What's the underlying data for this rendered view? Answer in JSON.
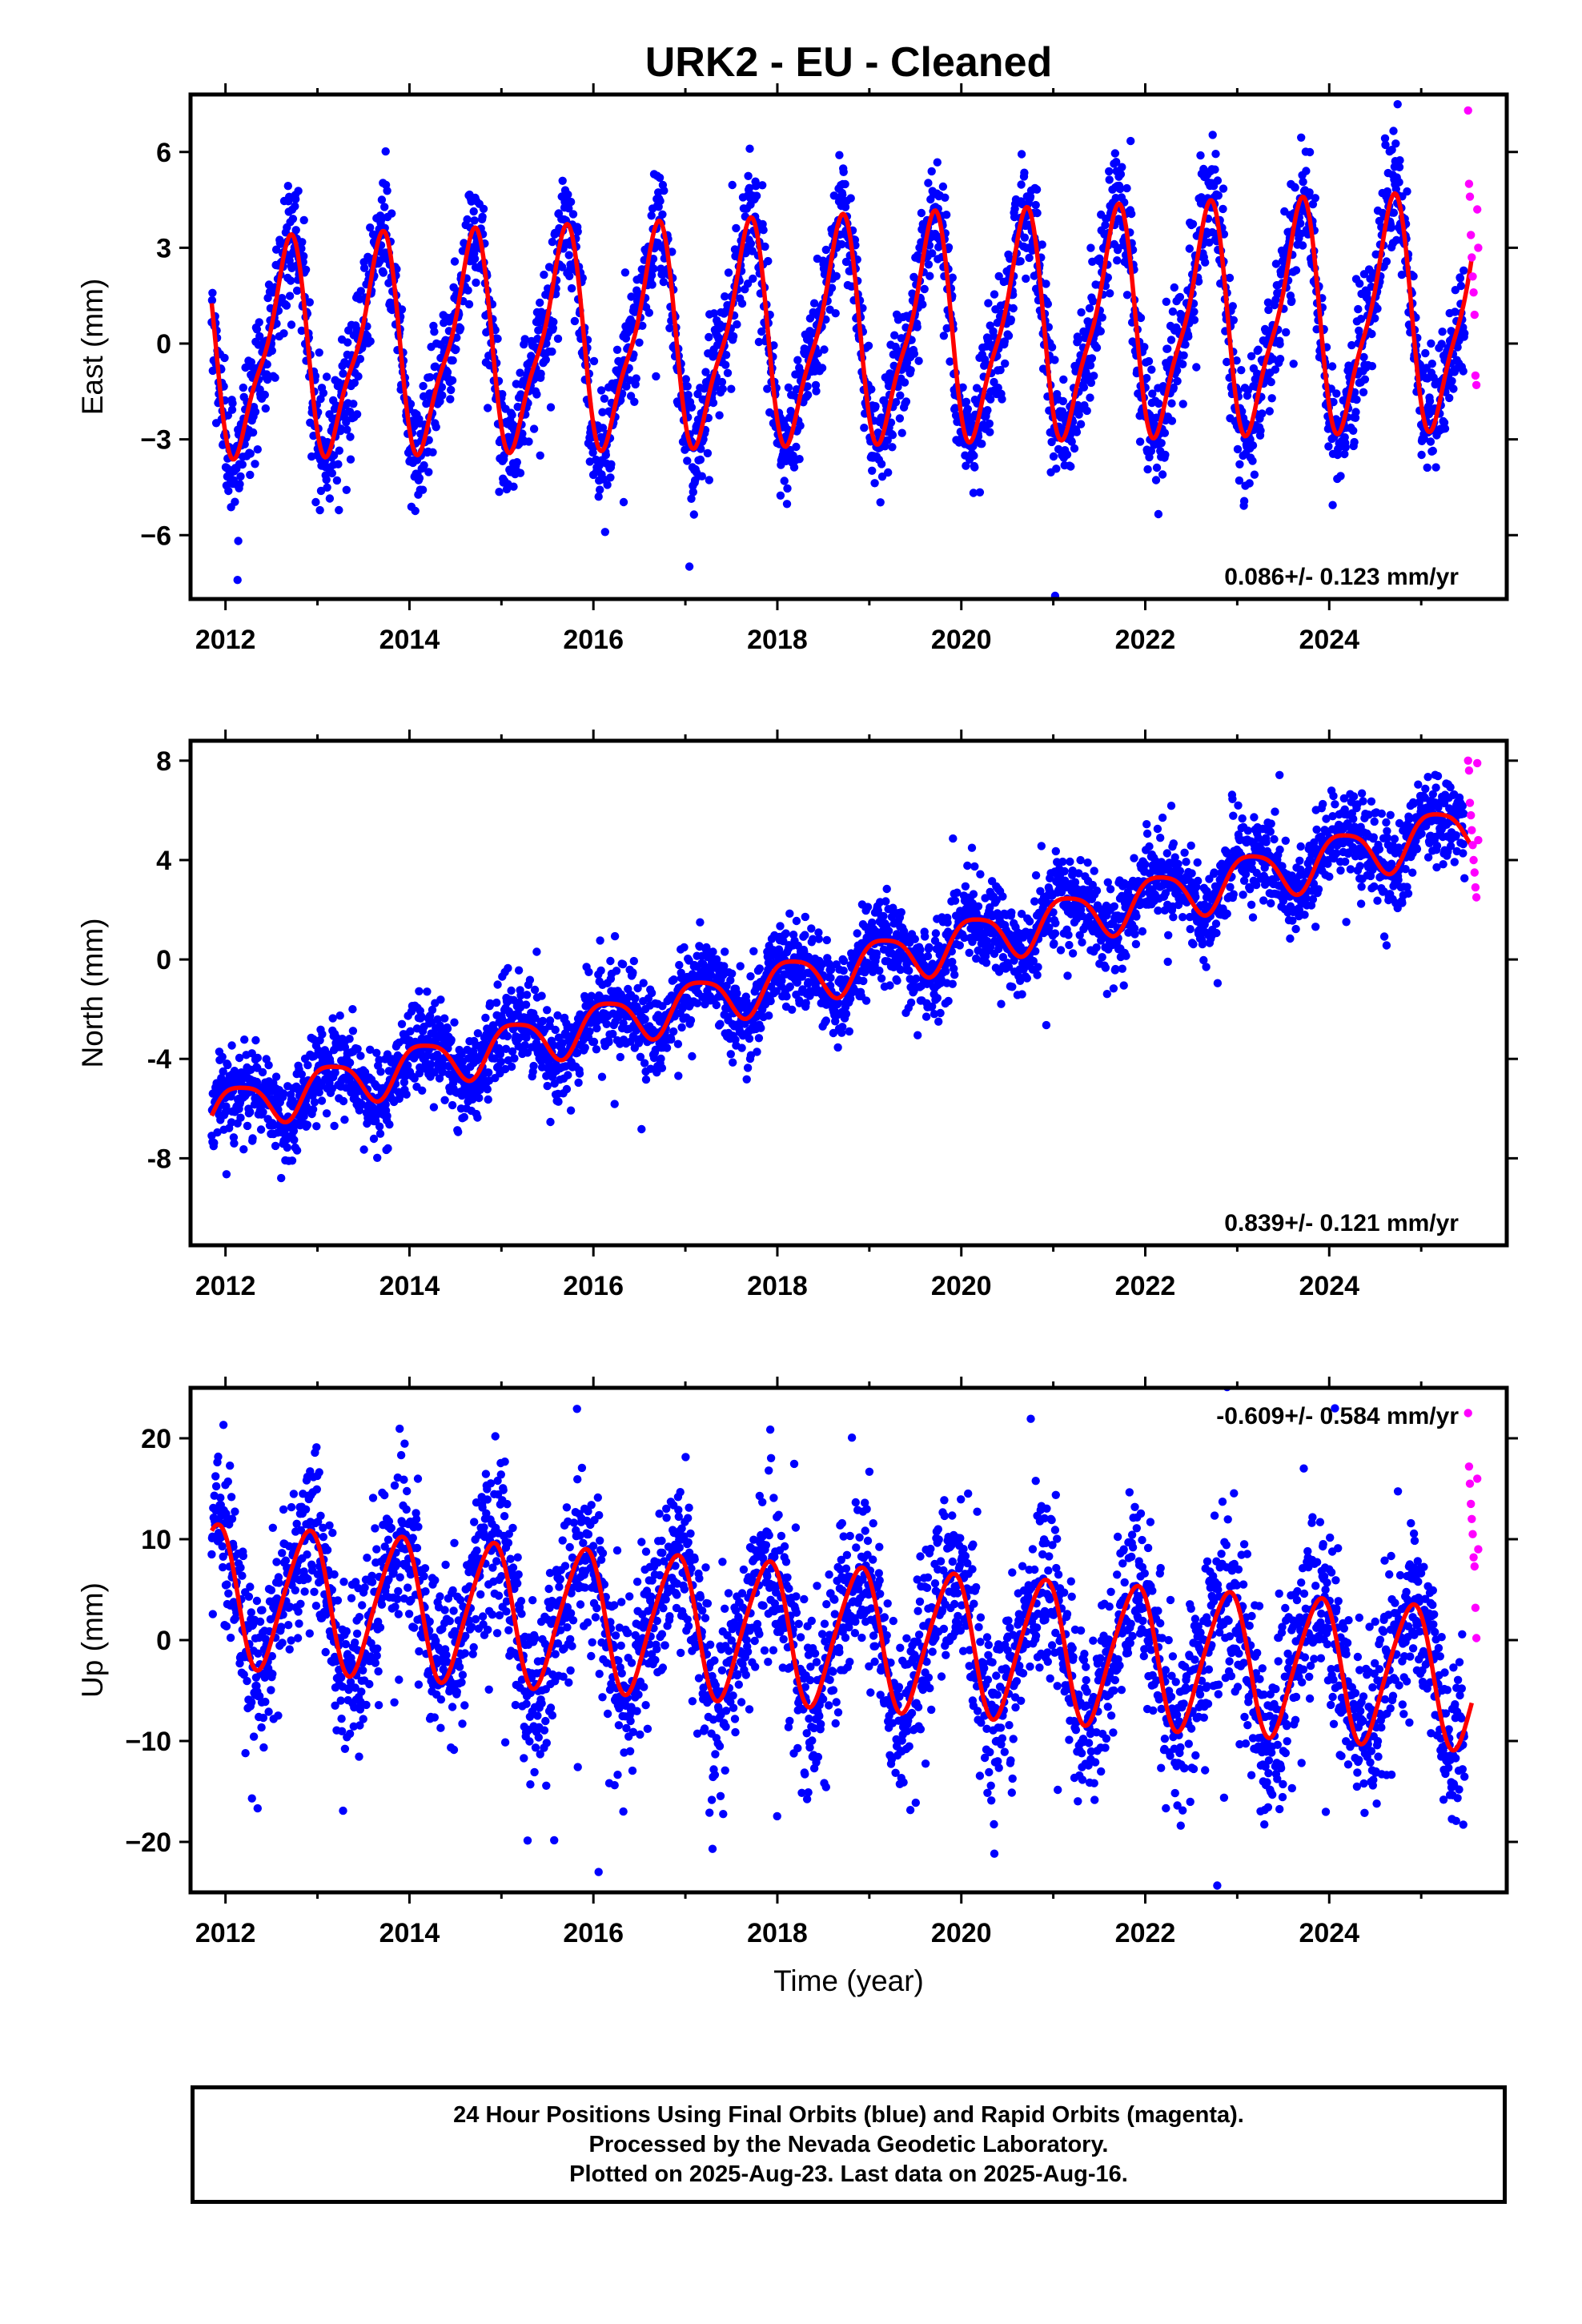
{
  "title": "URK2  - EU - Cleaned",
  "colors": {
    "final": "#0000ff",
    "rapid": "#ff00ff",
    "model": "#ff0000",
    "frame": "#000000"
  },
  "footer": {
    "line1": "24 Hour Positions Using Final Orbits (blue) and Rapid Orbits (magenta).",
    "line2": "Processed by the Nevada Geodetic Laboratory.",
    "line3": "Plotted on 2025-Aug-23. Last data on 2025-Aug-16."
  },
  "chart_data": [
    {
      "type": "scatter",
      "component": "east",
      "ylabel": "East (mm)",
      "xlabel": "",
      "xlim": [
        2011.62,
        2025.93
      ],
      "ylim": [
        -8.0,
        7.8
      ],
      "xticks": [
        2012,
        2014,
        2016,
        2018,
        2020,
        2022,
        2024
      ],
      "yticks": [
        -6,
        -3,
        0,
        3,
        6
      ],
      "ytick_labels": [
        "−6",
        "−3",
        "0",
        "3",
        "6"
      ],
      "rate_label": "0.086+/- 0.123 mm/yr",
      "rate_position": "bottom-right",
      "series": [
        {
          "name": "Final Orbits (blue)",
          "role": "final",
          "x_range": [
            2011.85,
            2025.47
          ],
          "trend": -0.3,
          "rate": 0.086,
          "annual_amp": 3.1,
          "annual_amp_change": 0.3,
          "phase": 0.41,
          "semiannual_amp": 0.9,
          "semiannual_phase": 0.14,
          "noise": 0.9,
          "count": 3300
        },
        {
          "name": "Rapid Orbits (magenta)",
          "role": "rapid",
          "x": [
            2025.51,
            2025.52,
            2025.53,
            2025.54,
            2025.55,
            2025.56,
            2025.57,
            2025.58,
            2025.59,
            2025.6,
            2025.61,
            2025.62
          ],
          "y": [
            7.3,
            5.0,
            4.6,
            3.4,
            2.7,
            2.1,
            1.6,
            0.9,
            -1.0,
            -1.3,
            4.2,
            3.0
          ]
        },
        {
          "name": "Model fit",
          "role": "model",
          "x_range": [
            2011.85,
            2025.55
          ]
        }
      ]
    },
    {
      "type": "scatter",
      "component": "north",
      "ylabel": "North (mm)",
      "xlabel": "",
      "xlim": [
        2011.62,
        2025.93
      ],
      "ylim": [
        -11.5,
        8.8
      ],
      "xticks": [
        2012,
        2014,
        2016,
        2018,
        2020,
        2022,
        2024
      ],
      "yticks": [
        -8,
        -4,
        0,
        4,
        8
      ],
      "ytick_labels": [
        "-8",
        "-4",
        "0",
        "4",
        "8"
      ],
      "rate_label": "0.839+/- 0.121 mm/yr",
      "rate_position": "bottom-right",
      "series": [
        {
          "name": "Final Orbits (blue)",
          "role": "final",
          "x_range": [
            2011.85,
            2025.47
          ],
          "trend": -6.0,
          "rate": 0.839,
          "annual_amp": 0.9,
          "annual_amp_change": 0.1,
          "phase": 0.9,
          "semiannual_amp": 0.2,
          "semiannual_phase": 0.3,
          "noise": 0.85,
          "count": 3300
        },
        {
          "name": "Rapid Orbits (magenta)",
          "role": "rapid",
          "x": [
            2025.51,
            2025.52,
            2025.53,
            2025.54,
            2025.55,
            2025.56,
            2025.57,
            2025.58,
            2025.59,
            2025.6,
            2025.61,
            2025.62
          ],
          "y": [
            8.0,
            7.6,
            6.3,
            5.8,
            5.2,
            4.6,
            4.0,
            3.5,
            2.9,
            2.5,
            7.9,
            4.8
          ]
        },
        {
          "name": "Model fit",
          "role": "model",
          "x_range": [
            2011.85,
            2025.55
          ]
        }
      ]
    },
    {
      "type": "scatter",
      "component": "up",
      "ylabel": "Up (mm)",
      "xlabel": "Time (year)",
      "xlim": [
        2011.62,
        2025.93
      ],
      "ylim": [
        -25,
        25
      ],
      "xticks": [
        2012,
        2014,
        2016,
        2018,
        2020,
        2022,
        2024
      ],
      "yticks": [
        -20,
        -10,
        0,
        10,
        20
      ],
      "ytick_labels": [
        "−20",
        "−10",
        "0",
        "10",
        "20"
      ],
      "rate_label": "-0.609+/- 0.584 mm/yr",
      "rate_position": "top-right",
      "series": [
        {
          "name": "Final Orbits (blue)",
          "role": "final",
          "x_range": [
            2011.85,
            2025.47
          ],
          "trend": 4.5,
          "rate": -0.609,
          "annual_amp": 6.9,
          "annual_amp_change": 0.0,
          "phase": 0.63,
          "semiannual_amp": 0.9,
          "semiannual_phase": 0.4,
          "noise": 4.3,
          "count": 3300
        },
        {
          "name": "Rapid Orbits (magenta)",
          "role": "rapid",
          "x": [
            2025.51,
            2025.52,
            2025.53,
            2025.54,
            2025.55,
            2025.56,
            2025.57,
            2025.58,
            2025.59,
            2025.6,
            2025.61,
            2025.62
          ],
          "y": [
            22.5,
            17.2,
            15.5,
            13.5,
            12.0,
            10.5,
            8.2,
            7.3,
            3.2,
            0.2,
            16.0,
            9.0
          ]
        },
        {
          "name": "Model fit",
          "role": "model",
          "x_range": [
            2011.85,
            2025.55
          ]
        }
      ]
    }
  ]
}
